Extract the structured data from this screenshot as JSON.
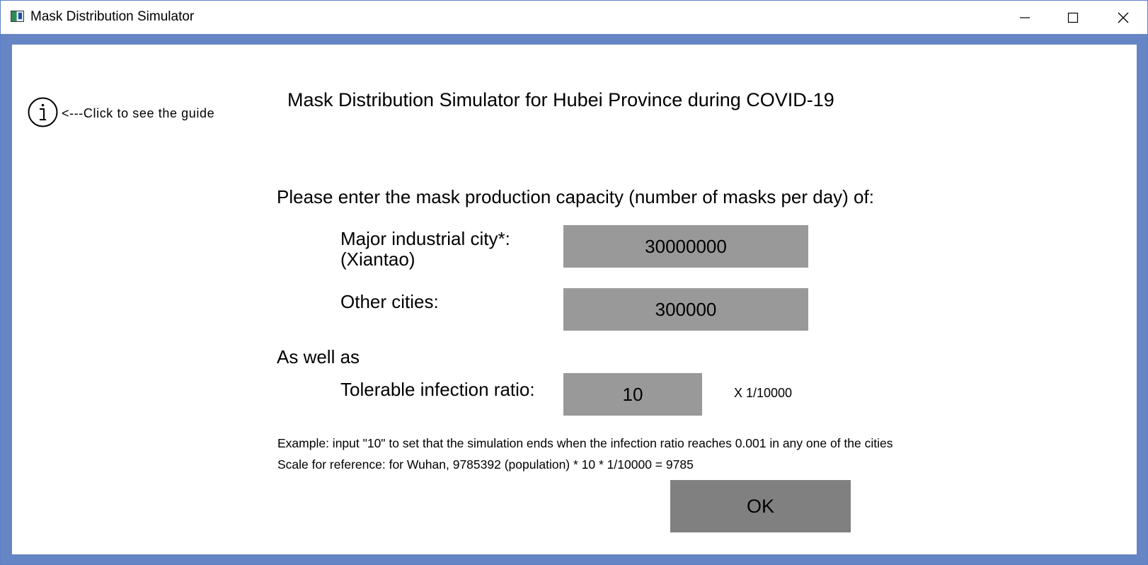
{
  "window": {
    "title": "Mask Distribution Simulator",
    "controls": {
      "minimize": "minimize-icon",
      "maximize": "maximize-icon",
      "close": "close-icon"
    }
  },
  "guide": {
    "icon": "info-icon",
    "text": "<---Click to see the guide"
  },
  "main": {
    "title": "Mask Distribution Simulator for Hubei Province during COVID-19",
    "prompt": "Please enter the mask production capacity (number of masks per day) of:",
    "fields": {
      "major_city_label_line1": "Major industrial city*:",
      "major_city_label_line2": "(Xiantao)",
      "major_city_value": "30000000",
      "other_cities_label": "Other cities:",
      "other_cities_value": "300000",
      "as_well_as": "As well as",
      "tolerable_label": "Tolerable infection ratio:",
      "tolerable_value": "10",
      "tolerable_unit": "X 1/10000"
    },
    "notes": {
      "example": "Example: input \"10\" to set that the simulation ends when the infection ratio reaches 0.001 in any one of the cities",
      "scale": "Scale for reference: for Wuhan, 9785392 (population) * 10 * 1/10000 = 9785"
    },
    "ok_label": "OK"
  },
  "colors": {
    "frame": "#6585c4",
    "field_bg": "#999999",
    "ok_bg": "#808080"
  }
}
